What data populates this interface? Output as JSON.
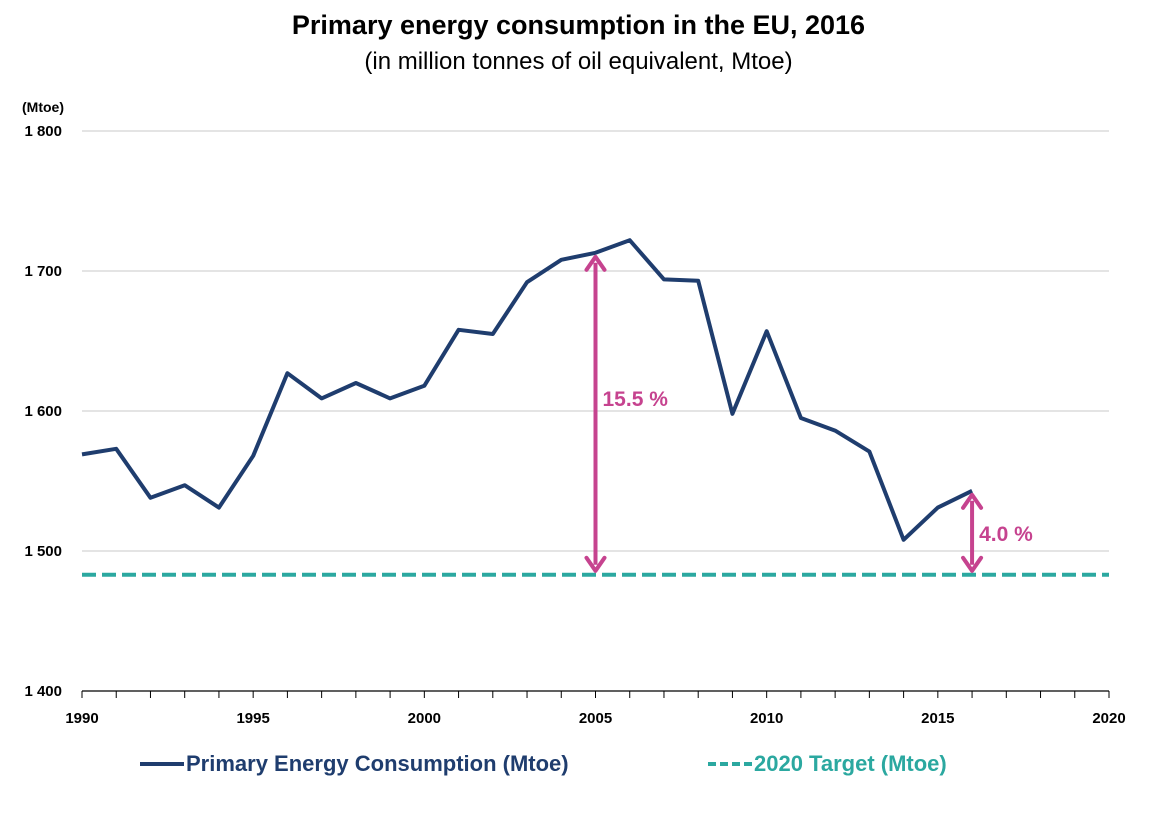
{
  "header": {
    "title": "Primary energy consumption in the EU, 2016",
    "subtitle": "(in million tonnes of oil equivalent, Mtoe)"
  },
  "chart_data": {
    "type": "line",
    "title": "Primary energy consumption in the EU, 2016",
    "subtitle": "(in million tonnes of oil equivalent, Mtoe)",
    "ylabel": "(Mtoe)",
    "xlabel": "",
    "xlim": [
      1990,
      2020
    ],
    "ylim": [
      1400,
      1800
    ],
    "x_ticks": [
      1990,
      1995,
      2000,
      2005,
      2010,
      2015,
      2020
    ],
    "y_ticks": [
      1400,
      1500,
      1600,
      1700,
      1800
    ],
    "y_tick_labels": [
      "1 400",
      "1 500",
      "1 600",
      "1 700",
      "1 800"
    ],
    "grid": "horizontal",
    "legend_position": "bottom",
    "series": [
      {
        "name": "Primary Energy Consumption (Mtoe)",
        "color": "#1f3d6e",
        "style": "solid",
        "x": [
          1990,
          1991,
          1992,
          1993,
          1994,
          1995,
          1996,
          1997,
          1998,
          1999,
          2000,
          2001,
          2002,
          2003,
          2004,
          2005,
          2006,
          2007,
          2008,
          2009,
          2010,
          2011,
          2012,
          2013,
          2014,
          2015,
          2016
        ],
        "values": [
          1569,
          1573,
          1538,
          1547,
          1531,
          1568,
          1627,
          1609,
          1620,
          1609,
          1618,
          1658,
          1655,
          1692,
          1708,
          1713,
          1722,
          1694,
          1693,
          1598,
          1657,
          1595,
          1586,
          1571,
          1508,
          1531,
          1543
        ]
      },
      {
        "name": "2020 Target (Mtoe)",
        "color": "#2ba8a0",
        "style": "dashed",
        "x": [
          1990,
          2020
        ],
        "values": [
          1483,
          1483
        ]
      }
    ],
    "annotations": [
      {
        "text": "15.5 %",
        "x": 2005,
        "from": 1483,
        "to": 1713,
        "color": "#c6438f"
      },
      {
        "text": "4.0 %",
        "x": 2016,
        "from": 1483,
        "to": 1543,
        "color": "#c6438f"
      }
    ]
  }
}
